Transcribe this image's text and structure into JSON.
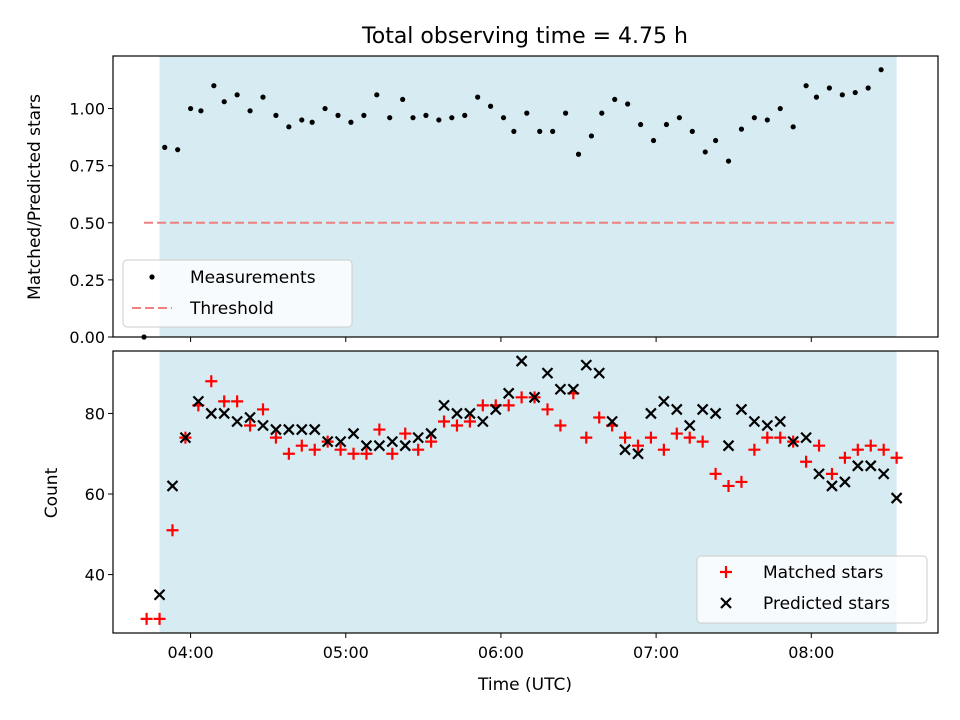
{
  "chart_data": [
    {
      "type": "scatter",
      "title": "Total observing time = 4.75 h",
      "xlabel": "",
      "ylabel": "Matched/Predicted stars",
      "ylim": [
        0,
        1.23
      ],
      "xlim_minutes": [
        210,
        529
      ],
      "grid": false,
      "legend_position": "lower-left",
      "y_ticks": [
        "0.00",
        "0.25",
        "0.50",
        "0.75",
        "1.00"
      ],
      "shaded_interval": [
        "03:48",
        "08:33"
      ],
      "colors": {
        "shade": "#add8e6",
        "measurements": "#000000",
        "threshold": "#f08080"
      },
      "series": [
        {
          "name": "Measurements",
          "marker": "dot",
          "points": [
            [
              "03:42",
              0.0
            ],
            [
              "03:50",
              0.83
            ],
            [
              "03:55",
              0.82
            ],
            [
              "04:00",
              1.0
            ],
            [
              "04:04",
              0.99
            ],
            [
              "04:09",
              1.1
            ],
            [
              "04:13",
              1.03
            ],
            [
              "04:18",
              1.06
            ],
            [
              "04:23",
              0.99
            ],
            [
              "04:28",
              1.05
            ],
            [
              "04:33",
              0.97
            ],
            [
              "04:38",
              0.92
            ],
            [
              "04:43",
              0.95
            ],
            [
              "04:47",
              0.94
            ],
            [
              "04:52",
              1.0
            ],
            [
              "04:57",
              0.97
            ],
            [
              "05:02",
              0.94
            ],
            [
              "05:07",
              0.97
            ],
            [
              "05:12",
              1.06
            ],
            [
              "05:17",
              0.96
            ],
            [
              "05:22",
              1.04
            ],
            [
              "05:26",
              0.96
            ],
            [
              "05:31",
              0.97
            ],
            [
              "05:36",
              0.95
            ],
            [
              "05:41",
              0.96
            ],
            [
              "05:46",
              0.97
            ],
            [
              "05:51",
              1.05
            ],
            [
              "05:56",
              1.01
            ],
            [
              "06:01",
              0.96
            ],
            [
              "06:05",
              0.9
            ],
            [
              "06:10",
              0.98
            ],
            [
              "06:15",
              0.9
            ],
            [
              "06:20",
              0.9
            ],
            [
              "06:25",
              0.98
            ],
            [
              "06:30",
              0.8
            ],
            [
              "06:35",
              0.88
            ],
            [
              "06:39",
              0.98
            ],
            [
              "06:44",
              1.04
            ],
            [
              "06:49",
              1.02
            ],
            [
              "06:54",
              0.93
            ],
            [
              "06:59",
              0.86
            ],
            [
              "07:04",
              0.93
            ],
            [
              "07:09",
              0.96
            ],
            [
              "07:14",
              0.9
            ],
            [
              "07:19",
              0.81
            ],
            [
              "07:23",
              0.86
            ],
            [
              "07:28",
              0.77
            ],
            [
              "07:33",
              0.91
            ],
            [
              "07:38",
              0.96
            ],
            [
              "07:43",
              0.95
            ],
            [
              "07:48",
              1.0
            ],
            [
              "07:53",
              0.92
            ],
            [
              "07:58",
              1.1
            ],
            [
              "08:02",
              1.05
            ],
            [
              "08:07",
              1.09
            ],
            [
              "08:12",
              1.06
            ],
            [
              "08:17",
              1.07
            ],
            [
              "08:22",
              1.09
            ],
            [
              "08:27",
              1.17
            ]
          ]
        },
        {
          "name": "Threshold",
          "marker": "dashed-line",
          "points": [
            [
              "03:42",
              0.5
            ],
            [
              "08:33",
              0.5
            ]
          ]
        }
      ]
    },
    {
      "type": "scatter",
      "title": "",
      "xlabel": "Time (UTC)",
      "ylabel": "Count",
      "ylim": [
        25.5,
        95.5
      ],
      "xlim_minutes": [
        210,
        529
      ],
      "grid": false,
      "legend_position": "lower-right",
      "y_ticks": [
        "40",
        "60",
        "80"
      ],
      "x_ticks": [
        "04:00",
        "05:00",
        "06:00",
        "07:00",
        "08:00"
      ],
      "shaded_interval": [
        "03:48",
        "08:33"
      ],
      "colors": {
        "shade": "#add8e6",
        "matched": "#ff0000",
        "predicted": "#000000"
      },
      "series": [
        {
          "name": "Matched stars",
          "marker": "plus",
          "points": [
            [
              "03:43",
              29
            ],
            [
              "03:48",
              29
            ],
            [
              "03:53",
              51
            ],
            [
              "03:58",
              74
            ],
            [
              "04:03",
              82
            ],
            [
              "04:08",
              88
            ],
            [
              "04:13",
              83
            ],
            [
              "04:18",
              83
            ],
            [
              "04:23",
              77
            ],
            [
              "04:28",
              81
            ],
            [
              "04:33",
              74
            ],
            [
              "04:38",
              70
            ],
            [
              "04:43",
              72
            ],
            [
              "04:48",
              71
            ],
            [
              "04:53",
              73
            ],
            [
              "04:58",
              71
            ],
            [
              "05:03",
              70
            ],
            [
              "05:08",
              70
            ],
            [
              "05:13",
              76
            ],
            [
              "05:18",
              70
            ],
            [
              "05:23",
              75
            ],
            [
              "05:28",
              71
            ],
            [
              "05:33",
              73
            ],
            [
              "05:38",
              78
            ],
            [
              "05:43",
              77
            ],
            [
              "05:48",
              78
            ],
            [
              "05:53",
              82
            ],
            [
              "05:58",
              82
            ],
            [
              "06:03",
              82
            ],
            [
              "06:08",
              84
            ],
            [
              "06:13",
              84
            ],
            [
              "06:18",
              81
            ],
            [
              "06:23",
              77
            ],
            [
              "06:28",
              85
            ],
            [
              "06:33",
              74
            ],
            [
              "06:38",
              79
            ],
            [
              "06:43",
              77
            ],
            [
              "06:48",
              74
            ],
            [
              "06:53",
              72
            ],
            [
              "06:58",
              74
            ],
            [
              "07:03",
              71
            ],
            [
              "07:08",
              75
            ],
            [
              "07:13",
              74
            ],
            [
              "07:18",
              73
            ],
            [
              "07:23",
              65
            ],
            [
              "07:28",
              62
            ],
            [
              "07:33",
              63
            ],
            [
              "07:38",
              71
            ],
            [
              "07:43",
              74
            ],
            [
              "07:48",
              74
            ],
            [
              "07:53",
              73
            ],
            [
              "07:58",
              68
            ],
            [
              "08:03",
              72
            ],
            [
              "08:08",
              65
            ],
            [
              "08:13",
              69
            ],
            [
              "08:18",
              71
            ],
            [
              "08:23",
              72
            ],
            [
              "08:28",
              71
            ],
            [
              "08:33",
              69
            ]
          ]
        },
        {
          "name": "Predicted stars",
          "marker": "x",
          "points": [
            [
              "03:48",
              35
            ],
            [
              "03:53",
              62
            ],
            [
              "03:58",
              74
            ],
            [
              "04:03",
              83
            ],
            [
              "04:08",
              80
            ],
            [
              "04:13",
              80
            ],
            [
              "04:18",
              78
            ],
            [
              "04:23",
              79
            ],
            [
              "04:28",
              77
            ],
            [
              "04:33",
              76
            ],
            [
              "04:38",
              76
            ],
            [
              "04:43",
              76
            ],
            [
              "04:48",
              76
            ],
            [
              "04:53",
              73
            ],
            [
              "04:58",
              73
            ],
            [
              "05:03",
              75
            ],
            [
              "05:08",
              72
            ],
            [
              "05:13",
              72
            ],
            [
              "05:18",
              73
            ],
            [
              "05:23",
              72
            ],
            [
              "05:28",
              74
            ],
            [
              "05:33",
              75
            ],
            [
              "05:38",
              82
            ],
            [
              "05:43",
              80
            ],
            [
              "05:48",
              80
            ],
            [
              "05:53",
              78
            ],
            [
              "05:58",
              81
            ],
            [
              "06:03",
              85
            ],
            [
              "06:08",
              93
            ],
            [
              "06:13",
              84
            ],
            [
              "06:18",
              90
            ],
            [
              "06:23",
              86
            ],
            [
              "06:28",
              86
            ],
            [
              "06:33",
              92
            ],
            [
              "06:38",
              90
            ],
            [
              "06:43",
              78
            ],
            [
              "06:48",
              71
            ],
            [
              "06:53",
              70
            ],
            [
              "06:58",
              80
            ],
            [
              "07:03",
              83
            ],
            [
              "07:08",
              81
            ],
            [
              "07:13",
              77
            ],
            [
              "07:18",
              81
            ],
            [
              "07:23",
              80
            ],
            [
              "07:28",
              72
            ],
            [
              "07:33",
              81
            ],
            [
              "07:38",
              78
            ],
            [
              "07:43",
              77
            ],
            [
              "07:48",
              78
            ],
            [
              "07:53",
              73
            ],
            [
              "07:58",
              74
            ],
            [
              "08:03",
              65
            ],
            [
              "08:08",
              62
            ],
            [
              "08:13",
              63
            ],
            [
              "08:18",
              67
            ],
            [
              "08:23",
              67
            ],
            [
              "08:28",
              65
            ],
            [
              "08:33",
              59
            ]
          ]
        }
      ]
    }
  ]
}
